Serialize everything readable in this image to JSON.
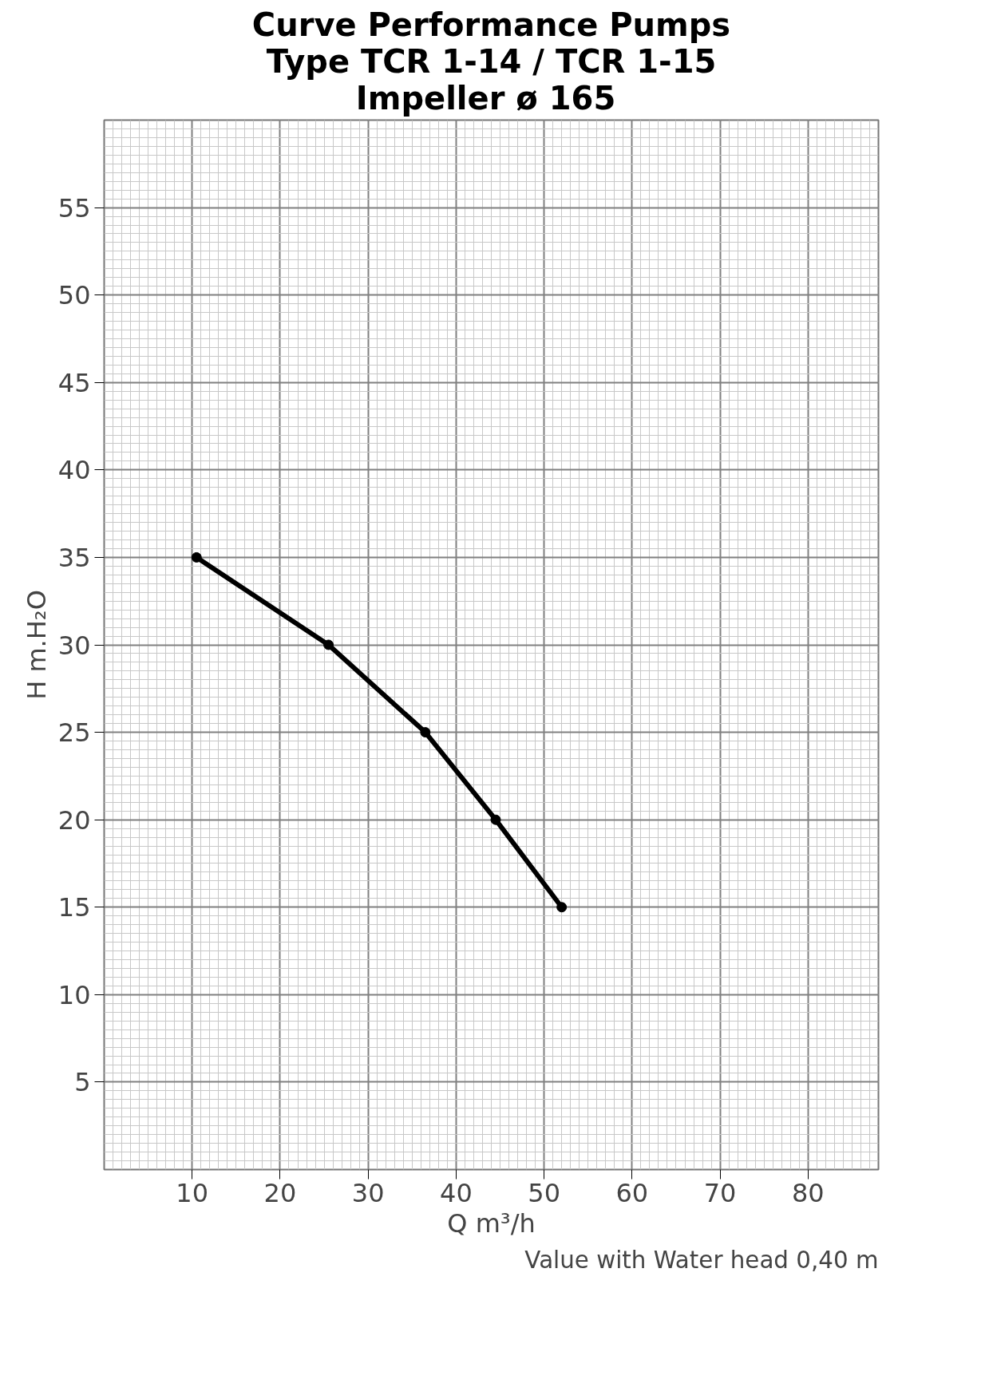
{
  "chart_data": {
    "type": "line",
    "title": "Curve Performance Pumps\nType TCR 1-14 / TCR 1-15\nImpeller  ø 165",
    "xlabel": "Q m³/h",
    "ylabel": "H m.H₂O",
    "x": [
      10.5,
      25.5,
      36.5,
      44.5,
      52
    ],
    "series": [
      {
        "color": "#000000",
        "values": [
          35,
          30,
          25,
          20,
          15
        ]
      }
    ],
    "xlim": [
      0,
      88
    ],
    "ylim": [
      0,
      60
    ],
    "xticks": [
      10,
      20,
      30,
      40,
      50,
      60,
      70,
      80
    ],
    "yticks": [
      5,
      10,
      15,
      20,
      25,
      30,
      35,
      40,
      45,
      50,
      55
    ],
    "grid": true,
    "marker": "circle",
    "line_style": "solid",
    "annotations": [
      "Value with Water head 0,40 m"
    ]
  }
}
